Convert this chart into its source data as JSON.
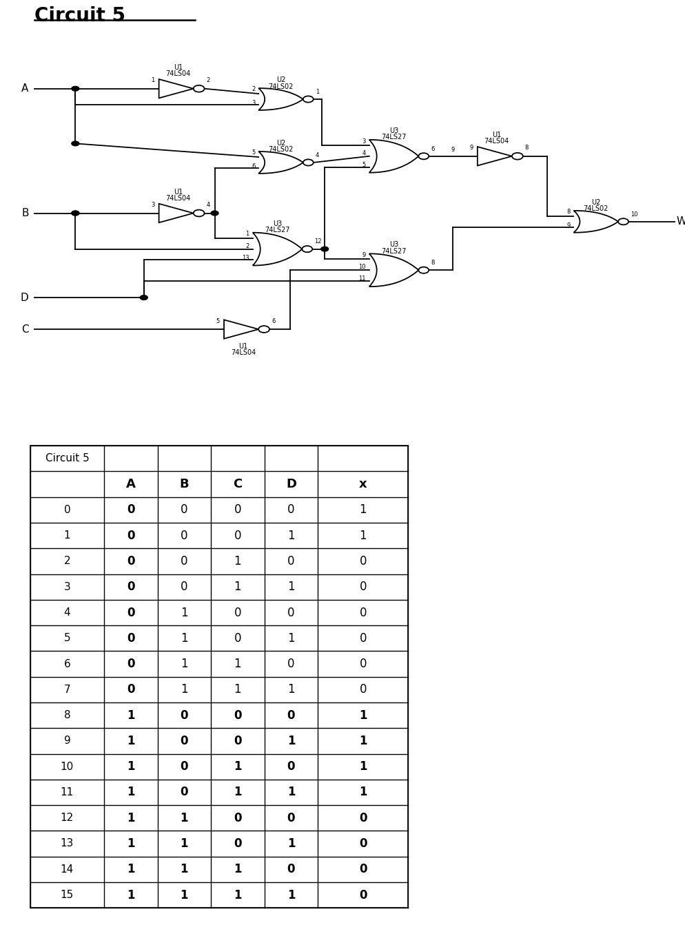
{
  "title": "Circuit 5",
  "table_rows": [
    [
      0,
      0,
      0,
      0,
      0,
      1
    ],
    [
      1,
      0,
      0,
      0,
      1,
      1
    ],
    [
      2,
      0,
      0,
      1,
      0,
      0
    ],
    [
      3,
      0,
      0,
      1,
      1,
      0
    ],
    [
      4,
      0,
      1,
      0,
      0,
      0
    ],
    [
      5,
      0,
      1,
      0,
      1,
      0
    ],
    [
      6,
      0,
      1,
      1,
      0,
      0
    ],
    [
      7,
      0,
      1,
      1,
      1,
      0
    ],
    [
      8,
      1,
      0,
      0,
      0,
      1
    ],
    [
      9,
      1,
      0,
      0,
      1,
      1
    ],
    [
      10,
      1,
      0,
      1,
      0,
      1
    ],
    [
      11,
      1,
      0,
      1,
      1,
      1
    ],
    [
      12,
      1,
      1,
      0,
      0,
      0
    ],
    [
      13,
      1,
      1,
      0,
      1,
      0
    ],
    [
      14,
      1,
      1,
      1,
      0,
      0
    ],
    [
      15,
      1,
      1,
      1,
      1,
      0
    ]
  ],
  "bold_cols_per_row": {
    "0": [
      1
    ],
    "1": [
      1
    ],
    "2": [
      1
    ],
    "3": [
      1
    ],
    "4": [
      1
    ],
    "5": [
      1
    ],
    "6": [
      1
    ],
    "7": [
      1
    ],
    "8": [
      1,
      2,
      3,
      4,
      5
    ],
    "9": [
      1,
      2,
      3,
      4,
      5
    ],
    "10": [
      1,
      2,
      3,
      4,
      5
    ],
    "11": [
      1,
      2,
      3,
      4,
      5
    ],
    "12": [
      1,
      2,
      3,
      4,
      5
    ],
    "13": [
      1,
      2,
      3,
      4,
      5
    ],
    "14": [
      1,
      2,
      3,
      4,
      5
    ],
    "15": [
      1,
      2,
      3,
      4,
      5
    ]
  },
  "bg_color": "#ffffff",
  "text_color": "#000000"
}
